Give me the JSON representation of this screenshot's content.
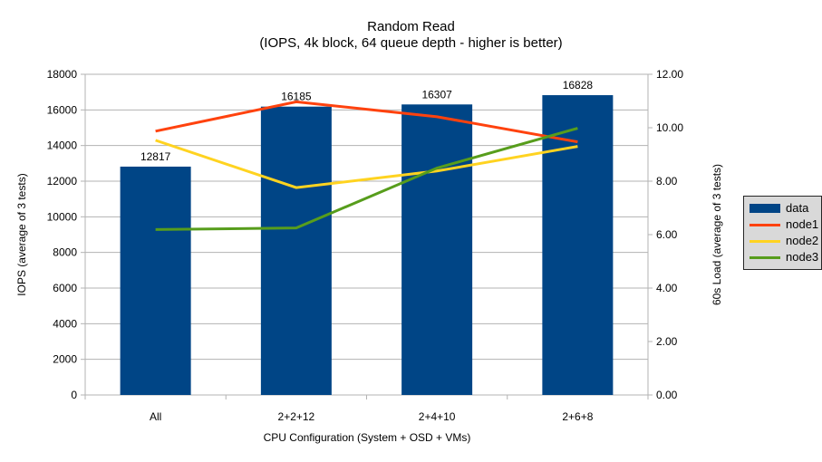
{
  "chart_data": {
    "type": "bar",
    "combo": "bars with overlaid lines",
    "title": "Random Read",
    "subtitle": "(IOPS, 4k block, 64 queue depth - higher is better)",
    "categories": [
      "All",
      "2+2+12",
      "2+4+10",
      "2+6+8"
    ],
    "x_axis": {
      "title": "CPU Configuration (System + OSD + VMs)"
    },
    "left_axis": {
      "title": "IOPS (average of 3 tests)",
      "min": 0,
      "max": 18000,
      "step": 2000,
      "tick_labels": [
        "0",
        "2000",
        "4000",
        "6000",
        "8000",
        "10000",
        "12000",
        "14000",
        "16000",
        "18000"
      ]
    },
    "right_axis": {
      "title": "60s Load (average of 3 tests)",
      "min": 0,
      "max": 12,
      "step": 2,
      "tick_labels": [
        "0.00",
        "2.00",
        "4.00",
        "6.00",
        "8.00",
        "10.00",
        "12.00"
      ]
    },
    "series": [
      {
        "name": "data",
        "type": "bar",
        "axis": "left",
        "color": "#004586",
        "values": [
          12817,
          16185,
          16307,
          16828
        ],
        "data_labels": [
          "12817",
          "16185",
          "16307",
          "16828"
        ]
      },
      {
        "name": "node1",
        "type": "line",
        "axis": "right",
        "color": "#ff420e",
        "values": [
          9.87,
          10.97,
          10.41,
          9.47
        ]
      },
      {
        "name": "node2",
        "type": "line",
        "axis": "right",
        "color": "#ffd320",
        "values": [
          9.53,
          7.76,
          8.38,
          9.3
        ]
      },
      {
        "name": "node3",
        "type": "line",
        "axis": "right",
        "color": "#579d1c",
        "values": [
          6.19,
          6.25,
          8.49,
          9.98
        ]
      }
    ],
    "legend": {
      "position": "right",
      "items": [
        "data",
        "node1",
        "node2",
        "node3"
      ]
    },
    "grid": {
      "horizontal": true,
      "vertical": false
    },
    "colors": {
      "grid": "#b3b3b3",
      "text": "#000000",
      "background": "#ffffff",
      "legend_bg": "#d9d9d9",
      "legend_border": "#262626"
    }
  }
}
